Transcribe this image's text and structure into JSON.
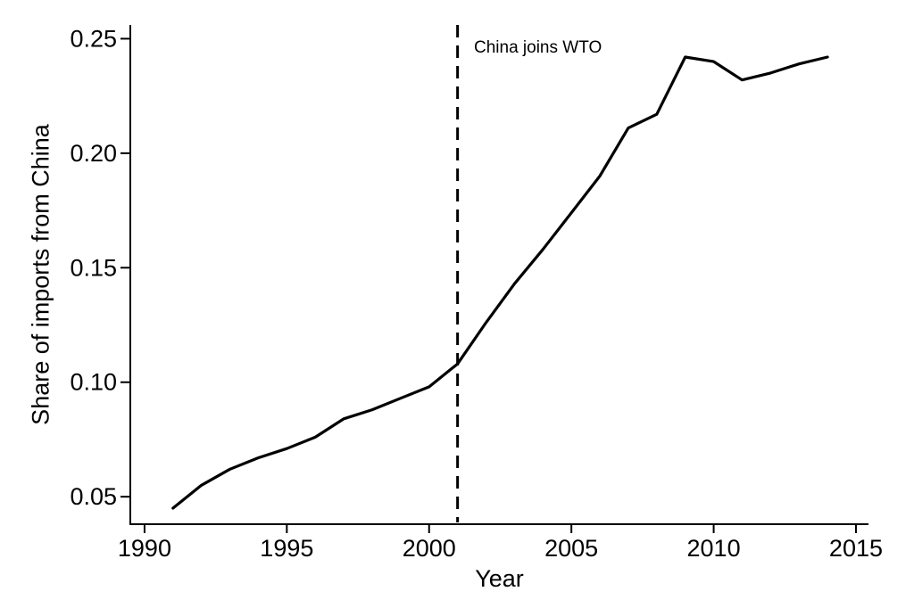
{
  "page": {
    "background_color": "#ffffff",
    "text_color": "#000000"
  },
  "chart_data": {
    "type": "line",
    "title": "",
    "xlabel": "Year",
    "ylabel": "Share of imports from China",
    "x": [
      1991,
      1992,
      1993,
      1994,
      1995,
      1996,
      1997,
      1998,
      1999,
      2000,
      2001,
      2002,
      2003,
      2004,
      2005,
      2006,
      2007,
      2008,
      2009,
      2010,
      2011,
      2012,
      2013,
      2014
    ],
    "series": [
      {
        "name": "Share of imports from China",
        "values": [
          0.045,
          0.055,
          0.062,
          0.067,
          0.071,
          0.076,
          0.084,
          0.088,
          0.093,
          0.098,
          0.108,
          0.126,
          0.143,
          0.158,
          0.174,
          0.19,
          0.211,
          0.217,
          0.242,
          0.24,
          0.232,
          0.235,
          0.239,
          0.242
        ]
      }
    ],
    "x_ticks": {
      "values": [
        1990,
        1995,
        2000,
        2005,
        2010,
        2015
      ],
      "labels": [
        "1990",
        "1995",
        "2000",
        "2005",
        "2010",
        "2015"
      ]
    },
    "y_ticks": {
      "values": [
        0.05,
        0.1,
        0.15,
        0.2,
        0.25
      ],
      "labels": [
        "0.05",
        "0.10",
        "0.15",
        "0.20",
        "0.25"
      ]
    },
    "xlim": [
      1989.5,
      2015.44
    ],
    "ylim": [
      0.038,
      0.256
    ],
    "grid": false,
    "legend_position": "none",
    "line_color": "#000000",
    "axis_color": "#000000",
    "text_color": "#000000",
    "annotation": {
      "label": "China joins WTO",
      "x": 2001,
      "line_style": "dashed-vertical"
    }
  }
}
